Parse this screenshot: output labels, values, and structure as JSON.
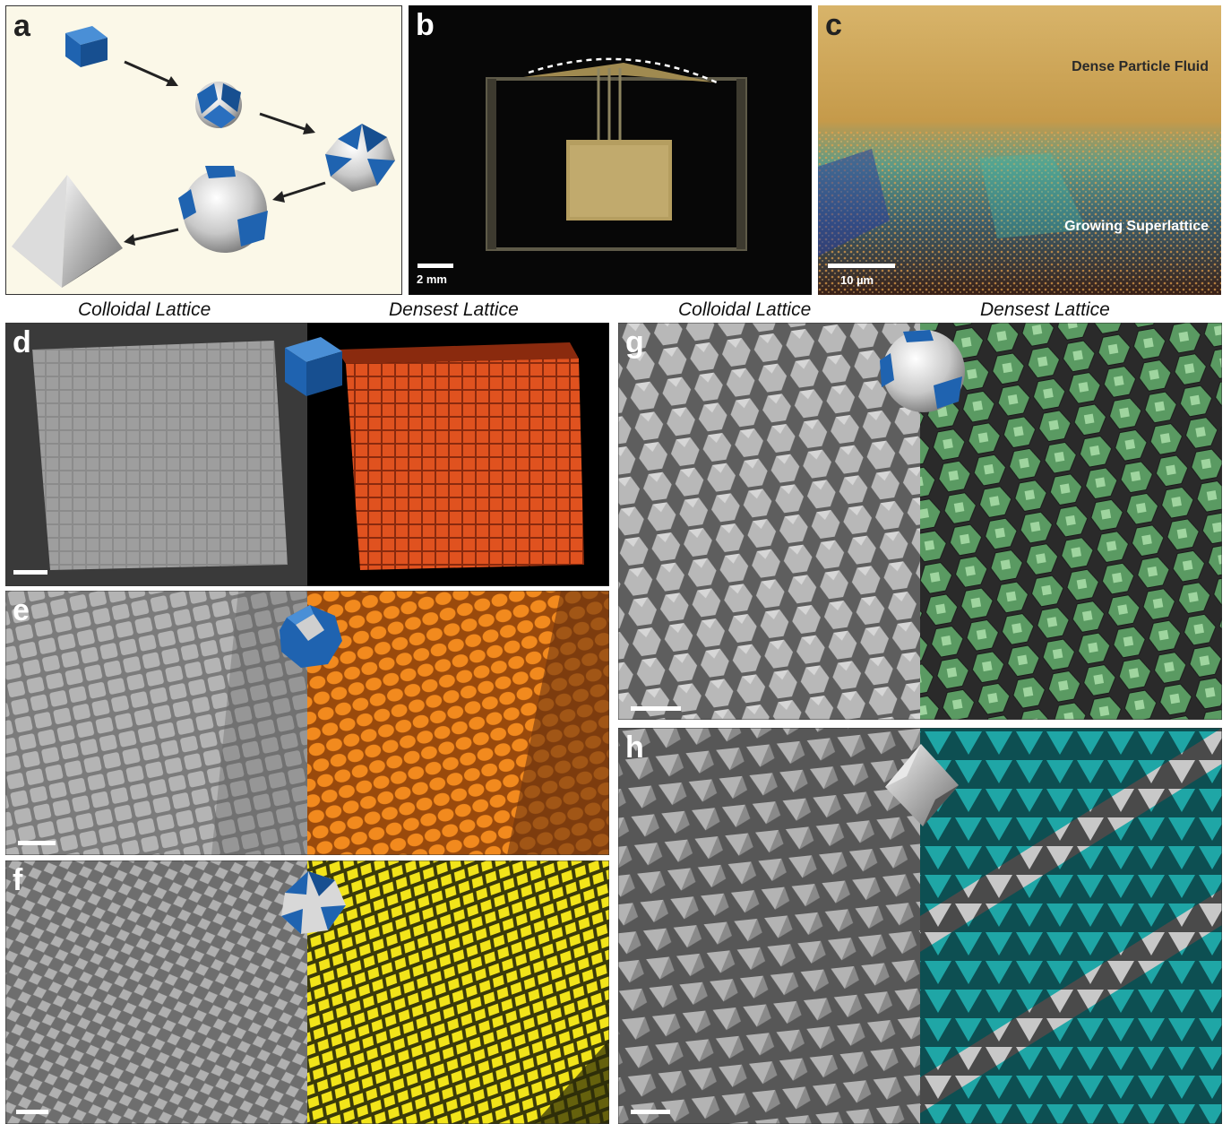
{
  "panels": {
    "a": {
      "label": "a"
    },
    "b": {
      "label": "b",
      "scale_bar": "2 mm"
    },
    "c": {
      "label": "c",
      "scale_bar": "10 µm",
      "annotation_top": "Dense Particle Fluid",
      "annotation_bottom": "Growing Superlattice"
    },
    "d": {
      "label": "d"
    },
    "e": {
      "label": "e"
    },
    "f": {
      "label": "f"
    },
    "g": {
      "label": "g"
    },
    "h": {
      "label": "h"
    }
  },
  "headers": {
    "left_colloidal": "Colloidal Lattice",
    "left_densest": "Densest Lattice",
    "right_colloidal": "Colloidal Lattice",
    "right_densest": "Densest Lattice"
  },
  "colors": {
    "particle_blue": "#1f63b0",
    "panel_a_bg": "#fbf8e8",
    "densest_d": "#d94a1c",
    "densest_e": "#f08a1c",
    "densest_f": "#f2e41a",
    "densest_g": "#4f9a58",
    "densest_h": "#1fa6a6",
    "sem_gray": "#9a9a9a"
  },
  "icons": [
    "cube-particle",
    "truncated-cube-particle",
    "cuboctahedron-particle",
    "truncated-octahedron-particle",
    "octahedron-particle",
    "arrow"
  ]
}
